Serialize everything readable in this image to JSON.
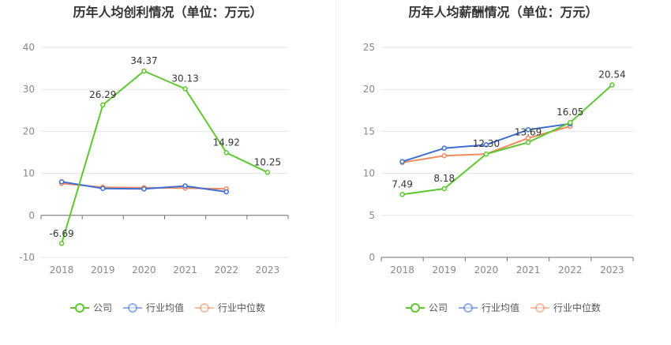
{
  "chart_data": [
    {
      "type": "line",
      "title": "历年人均创利情况（单位：万元）",
      "categories": [
        "2018",
        "2019",
        "2020",
        "2021",
        "2022",
        "2023"
      ],
      "ylim": [
        -10,
        40
      ],
      "yticks": [
        -10,
        0,
        10,
        20,
        30,
        40
      ],
      "grid": true,
      "legend_position": "bottom",
      "series": [
        {
          "name": "公司",
          "color": "#5ec72f",
          "values": [
            -6.69,
            26.29,
            34.37,
            30.13,
            14.92,
            10.25
          ],
          "labels": [
            "-6.69",
            "26.29",
            "34.37",
            "30.13",
            "14.92",
            "10.25"
          ]
        },
        {
          "name": "行业均值",
          "color": "#3d6fd1",
          "values": [
            8.0,
            6.4,
            6.3,
            7.0,
            5.6,
            null
          ],
          "labels": null
        },
        {
          "name": "行业中位数",
          "color": "#f08a5d",
          "values": [
            7.6,
            6.7,
            6.6,
            6.5,
            6.3,
            null
          ],
          "labels": null
        }
      ]
    },
    {
      "type": "line",
      "title": "历年人均薪酬情况（单位：万元）",
      "categories": [
        "2018",
        "2019",
        "2020",
        "2021",
        "2022",
        "2023"
      ],
      "ylim": [
        0,
        25
      ],
      "yticks": [
        0,
        5,
        10,
        15,
        20,
        25
      ],
      "grid": true,
      "legend_position": "bottom",
      "series": [
        {
          "name": "公司",
          "color": "#5ec72f",
          "values": [
            7.49,
            8.18,
            12.3,
            13.69,
            16.05,
            20.54
          ],
          "labels": [
            "7.49",
            "8.18",
            "12.30",
            "13.69",
            "16.05",
            "20.54"
          ]
        },
        {
          "name": "行业均值",
          "color": "#3d6fd1",
          "values": [
            11.4,
            13.0,
            13.4,
            15.2,
            15.9,
            null
          ],
          "labels": null
        },
        {
          "name": "行业中位数",
          "color": "#f08a5d",
          "values": [
            11.3,
            12.1,
            12.3,
            14.2,
            15.6,
            null
          ],
          "labels": null
        }
      ]
    }
  ]
}
